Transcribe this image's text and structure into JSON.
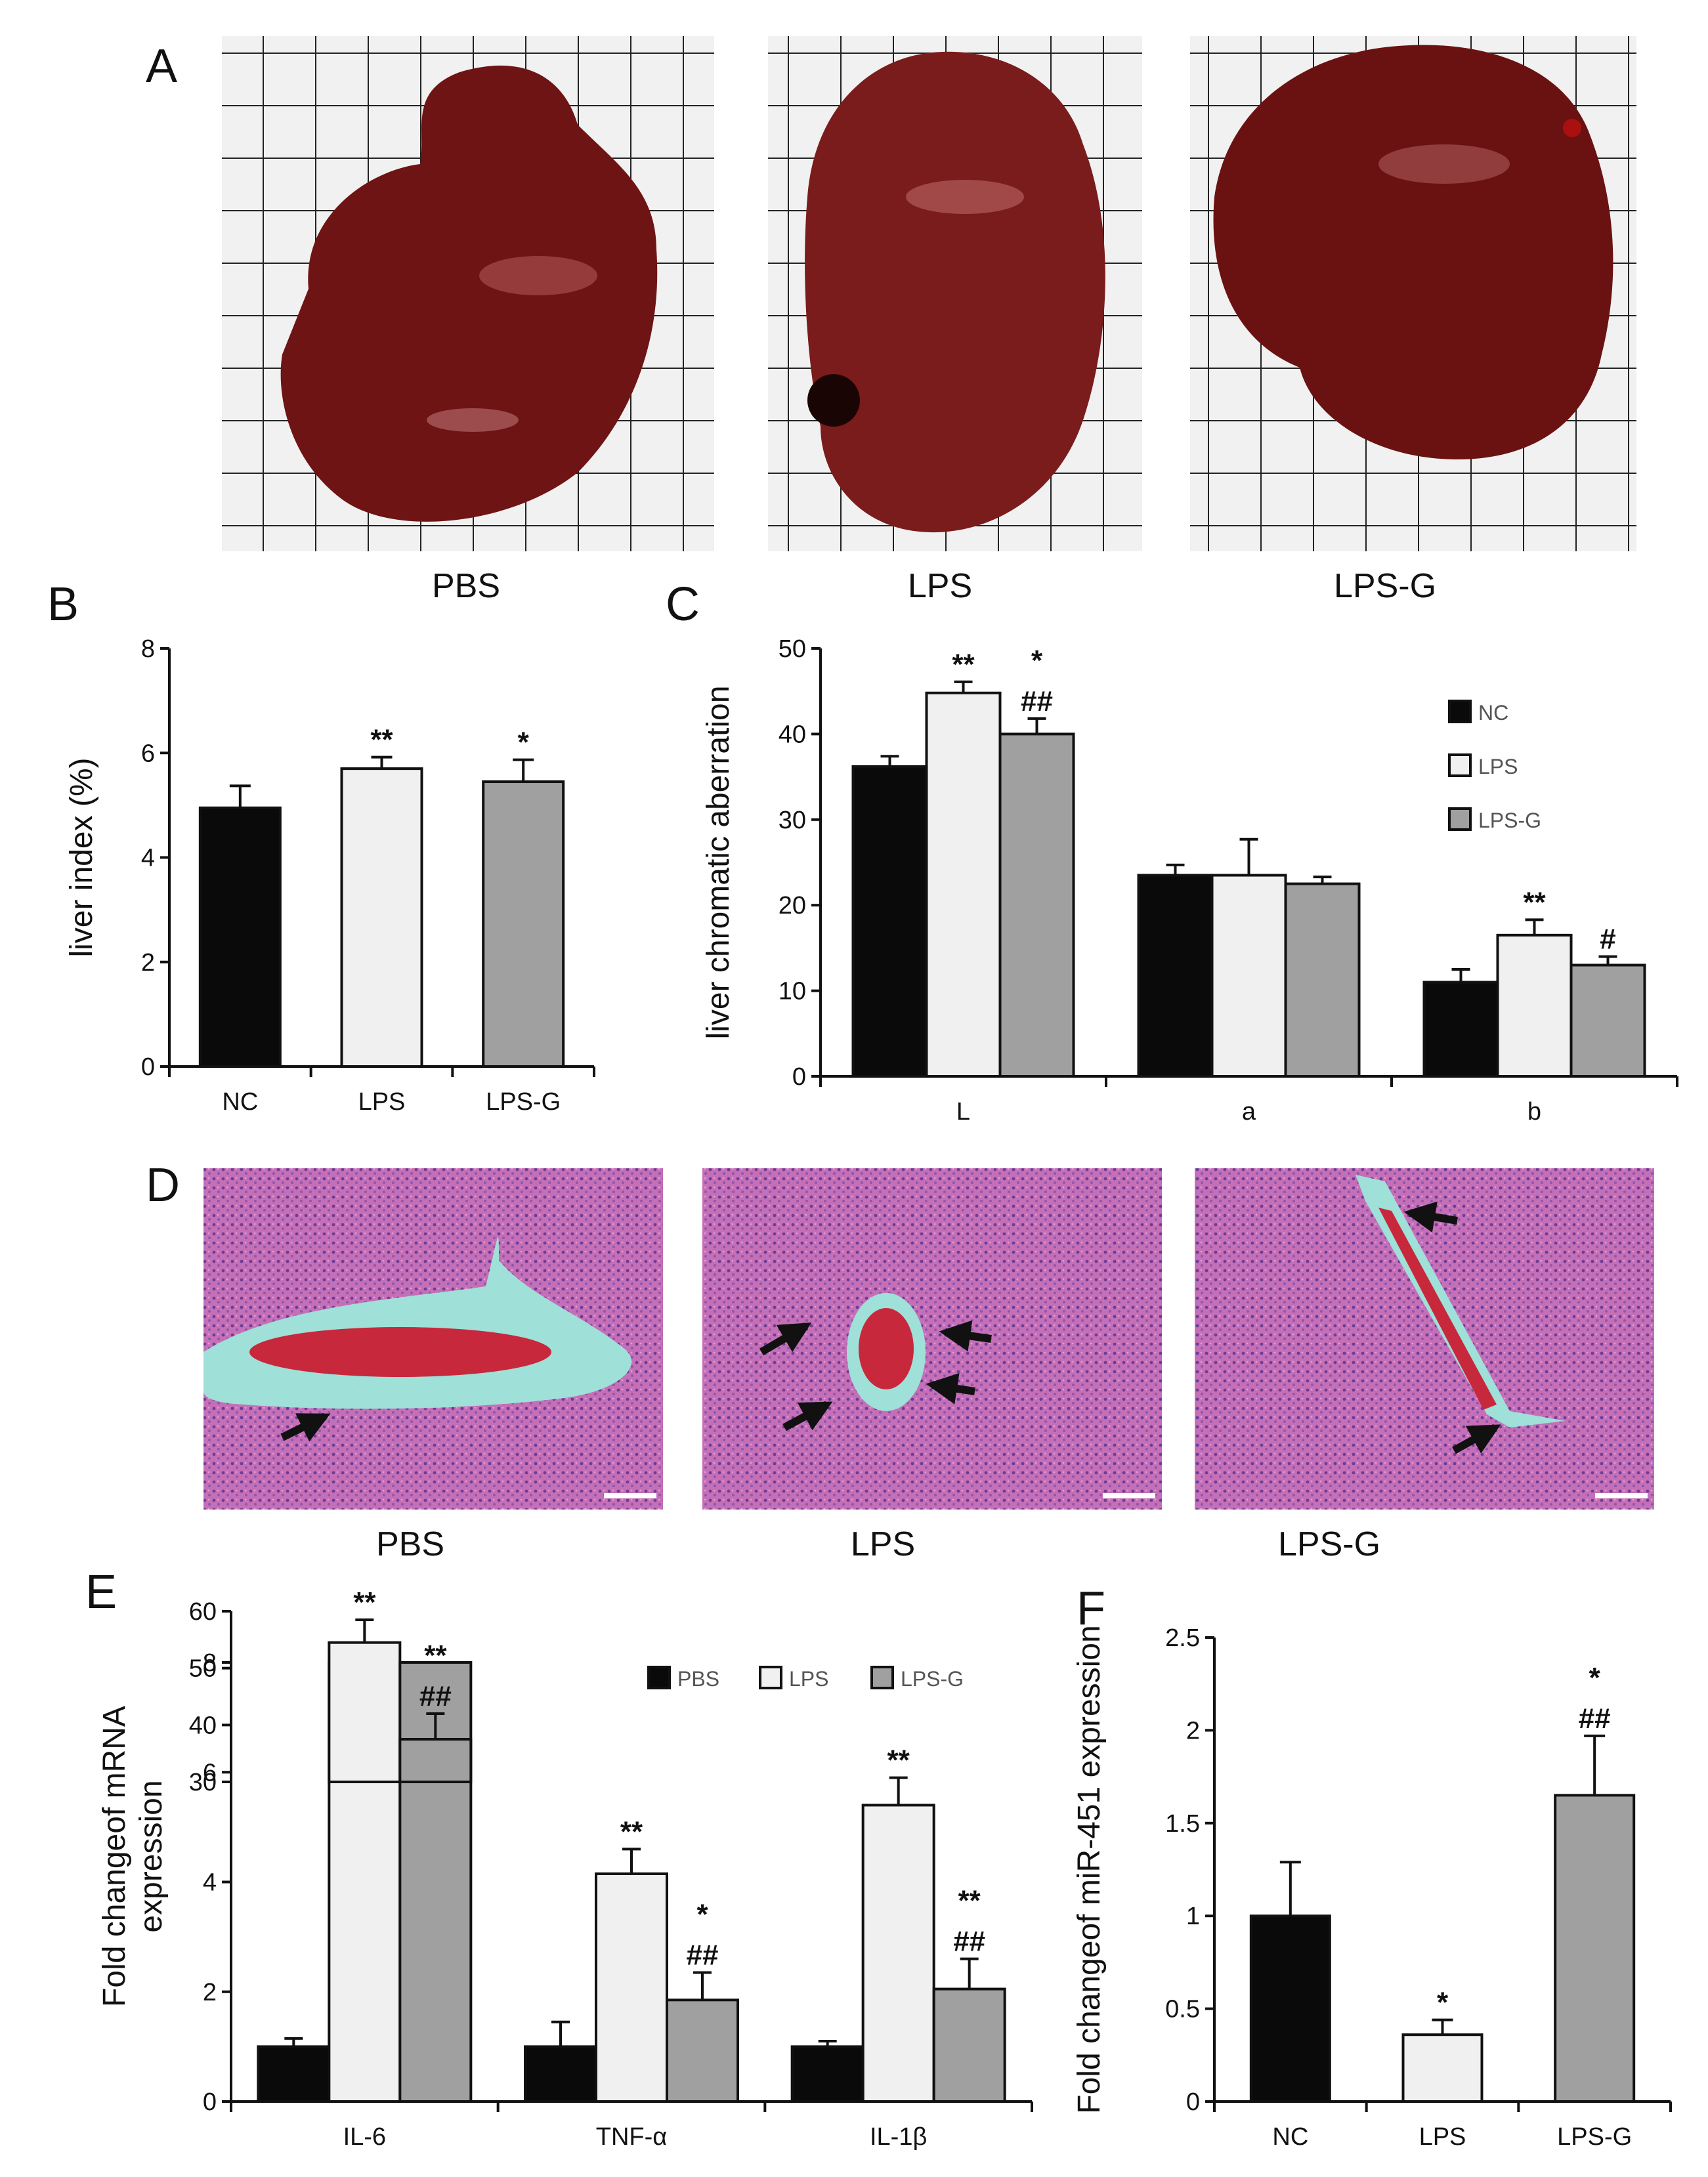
{
  "figure": {
    "panels": [
      "A",
      "B",
      "C",
      "D",
      "E",
      "F"
    ]
  },
  "photos": {
    "labels": [
      "PBS",
      "LPS",
      "LPS-G"
    ]
  },
  "histology": {
    "labels": [
      "PBS",
      "LPS",
      "LPS-G"
    ]
  },
  "colors": {
    "NC": "#0a0a0a",
    "LPS": "#f0f0f0",
    "LPS-G": "#a0a0a0",
    "liver": "#6e1414",
    "tissue": "#c869b4",
    "vessel": "#9fe0d8",
    "blood": "#c8283c"
  },
  "chart_data": [
    {
      "panel": "B",
      "type": "bar",
      "categories": [
        "NC",
        "LPS",
        "LPS-G"
      ],
      "values": [
        4.95,
        5.7,
        5.45
      ],
      "errors": [
        0.42,
        0.22,
        0.42
      ],
      "annotations": [
        "",
        "**",
        "*"
      ],
      "ylabel": "liver index (%)",
      "ylim": [
        0,
        8
      ],
      "yticks": [
        0,
        2,
        4,
        6,
        8
      ]
    },
    {
      "panel": "C",
      "type": "bar",
      "categories": [
        "L",
        "a",
        "b"
      ],
      "series": [
        {
          "name": "NC",
          "values": [
            36.2,
            23.5,
            11.0
          ],
          "errors": [
            1.2,
            1.2,
            1.5
          ],
          "annotations": [
            "",
            "",
            ""
          ]
        },
        {
          "name": "LPS",
          "values": [
            44.8,
            23.5,
            16.5
          ],
          "errors": [
            1.3,
            4.2,
            1.8
          ],
          "annotations": [
            "**",
            "",
            "**"
          ]
        },
        {
          "name": "LPS-G",
          "values": [
            40.0,
            22.5,
            13.0
          ],
          "errors": [
            1.8,
            0.8,
            1.0
          ],
          "annotations": [
            "*\n##",
            "",
            "#"
          ]
        }
      ],
      "ylabel": "liver chromatic aberration",
      "ylim": [
        0,
        50
      ],
      "yticks": [
        0,
        10,
        20,
        30,
        40,
        50
      ],
      "legend": "top-right"
    },
    {
      "panel": "E",
      "type": "bar",
      "categories": [
        "IL-6",
        "TNF-α",
        "IL-1β"
      ],
      "series": [
        {
          "name": "PBS",
          "values": [
            1.0,
            1.0,
            1.0
          ],
          "errors": [
            0.15,
            0.45,
            0.1
          ],
          "annotations": [
            "",
            "",
            ""
          ]
        },
        {
          "name": "LPS",
          "values": [
            54.5,
            4.15,
            5.4
          ],
          "errors": [
            4.0,
            0.45,
            0.5
          ],
          "annotations": [
            "**",
            "**",
            "**"
          ]
        },
        {
          "name": "LPS-G",
          "values": [
            37.5,
            1.85,
            2.05
          ],
          "errors": [
            4.5,
            0.5,
            0.55
          ],
          "annotations": [
            "**\n##",
            "*\n##",
            "**\n##"
          ]
        }
      ],
      "ylabel": "Fold changeof mRNA expression",
      "ylim_lower": [
        0,
        8
      ],
      "ylim_upper": [
        30,
        60
      ],
      "yticks_lower": [
        0,
        2,
        4,
        6,
        8
      ],
      "yticks_upper": [
        30,
        40,
        50,
        60
      ],
      "broken_axis": true,
      "legend": "top-right"
    },
    {
      "panel": "F",
      "type": "bar",
      "categories": [
        "NC",
        "LPS",
        "LPS-G"
      ],
      "values": [
        1.0,
        0.36,
        1.65
      ],
      "errors": [
        0.29,
        0.08,
        0.32
      ],
      "annotations": [
        "",
        "*",
        "*\n##"
      ],
      "ylabel": "Fold changeof miR-451 expression",
      "ylim": [
        0,
        2.5
      ],
      "yticks": [
        0,
        0.5,
        1,
        1.5,
        2,
        2.5
      ],
      "ytick_labels": [
        "0",
        "0.5",
        "1",
        "1.5",
        "2",
        "2.5"
      ]
    }
  ]
}
